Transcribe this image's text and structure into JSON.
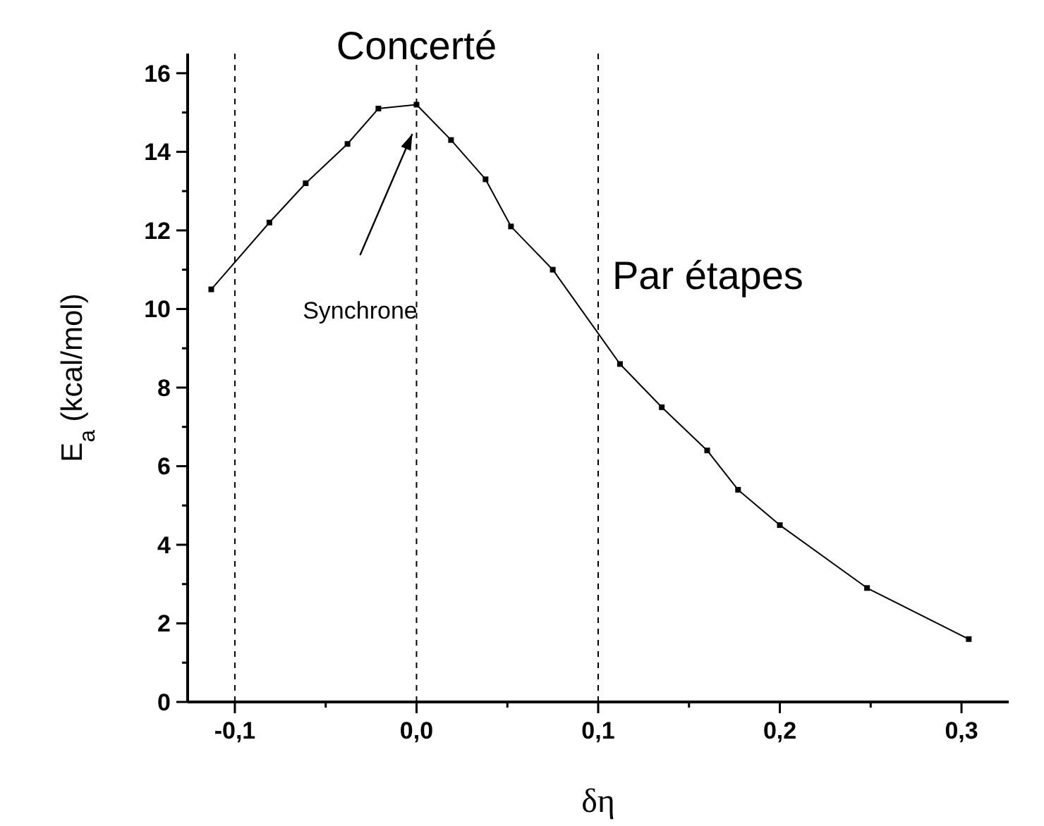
{
  "chart_data": {
    "type": "line",
    "xlabel": "δη",
    "ylabel": "E$_{a}$ (kcal/mol)",
    "x": [
      -0.113,
      -0.081,
      -0.061,
      -0.038,
      -0.021,
      0.0,
      0.019,
      0.038,
      0.052,
      0.075,
      0.112,
      0.135,
      0.16,
      0.177,
      0.2,
      0.248,
      0.304
    ],
    "series": [
      {
        "color": "#000000",
        "values": [
          10.5,
          12.2,
          13.2,
          14.2,
          15.1,
          15.2,
          14.3,
          13.3,
          12.1,
          11.0,
          8.6,
          7.5,
          6.4,
          5.4,
          4.5,
          2.9,
          1.6
        ]
      }
    ],
    "xlim": [
      -0.126,
      0.326
    ],
    "ylim": [
      0,
      16.5
    ],
    "xticks": [
      {
        "value": -0.1,
        "label": "-0,1"
      },
      {
        "value": 0,
        "label": "0,0"
      },
      {
        "value": 0.1,
        "label": "0,1"
      },
      {
        "value": 0.2,
        "label": "0,2"
      },
      {
        "value": 0.3,
        "label": "0,3"
      }
    ],
    "yticks": [
      0,
      2,
      4,
      6,
      8,
      10,
      12,
      14,
      16
    ],
    "ref_lines": [
      {
        "axis": "x",
        "value": -0.1,
        "line_style": "dashed"
      },
      {
        "axis": "x",
        "value": 0,
        "line_style": "dashed"
      },
      {
        "axis": "x",
        "value": 0.1,
        "line_style": "dashed"
      }
    ],
    "annotations": [
      "Concerté",
      "Par étapes",
      "Synchrone"
    ],
    "marker": "square",
    "line_style": "solid",
    "grid": false
  }
}
